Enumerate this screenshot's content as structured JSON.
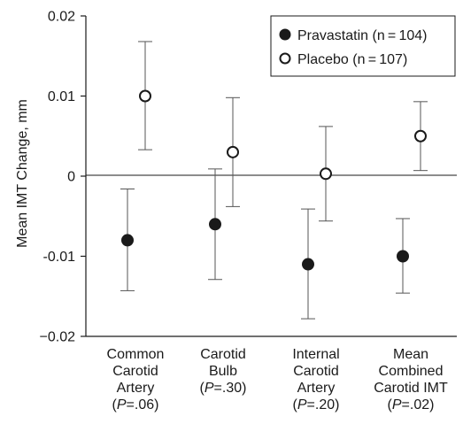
{
  "chart_data": {
    "type": "scatter",
    "ylabel": "Mean IMT Change, mm",
    "ylim": [
      -0.02,
      0.02
    ],
    "yticks": [
      "0.02",
      "0.01",
      "0",
      "-0.01",
      "−0.02"
    ],
    "yticks_values": [
      0.02,
      0.01,
      0,
      -0.01,
      -0.02
    ],
    "categories": [
      {
        "lines": [
          "Common",
          "Carotid",
          "Artery"
        ],
        "p_label": "P",
        "p_value": "=.06"
      },
      {
        "lines": [
          "Carotid",
          "Bulb"
        ],
        "p_label": "P",
        "p_value": "=.30"
      },
      {
        "lines": [
          "Internal",
          "Carotid",
          "Artery"
        ],
        "p_label": "P",
        "p_value": "=.20"
      },
      {
        "lines": [
          "Mean",
          "Combined",
          "Carotid IMT"
        ],
        "p_label": "P",
        "p_value": "=.02"
      }
    ],
    "series": [
      {
        "name": "Pravastatin (n = 104)",
        "marker": "filled-circle",
        "color": "#1a1a1a",
        "values": [
          -0.008,
          -0.006,
          -0.011,
          -0.01
        ],
        "err_low": [
          -0.0143,
          -0.0129,
          -0.0178,
          -0.0146
        ],
        "err_high": [
          -0.0016,
          0.0009,
          -0.0041,
          -0.0053
        ]
      },
      {
        "name": "Placebo (n = 107)",
        "marker": "open-circle",
        "color": "#1a1a1a",
        "values": [
          0.01,
          0.003,
          0.0003,
          0.005
        ],
        "err_low": [
          0.0033,
          -0.0038,
          -0.0056,
          0.0007
        ],
        "err_high": [
          0.0168,
          0.0098,
          0.0062,
          0.0093
        ]
      }
    ],
    "legend_position": "top-right",
    "zero_line": true,
    "grid": false
  }
}
